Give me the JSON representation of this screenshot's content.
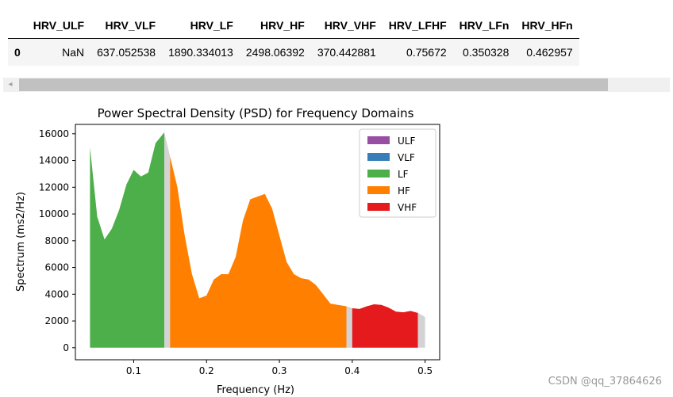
{
  "dataframe": {
    "columns": [
      "",
      "HRV_ULF",
      "HRV_VLF",
      "HRV_LF",
      "HRV_HF",
      "HRV_VHF",
      "HRV_LFHF",
      "HRV_LFn",
      "HRV_HFn"
    ],
    "rows": [
      [
        "0",
        "NaN",
        "637.052538",
        "1890.334013",
        "2498.06392",
        "370.442881",
        "0.75672",
        "0.350328",
        "0.462957"
      ]
    ]
  },
  "scrollbar": {
    "left_arrow": "◂"
  },
  "chart_data": {
    "type": "area",
    "title": "Power Spectral Density (PSD) for Frequency Domains",
    "xlabel": "Frequency (Hz)",
    "ylabel": "Spectrum (ms2/Hz)",
    "xlim": [
      0.02,
      0.52
    ],
    "ylim": [
      -900,
      16700
    ],
    "xticks": [
      0.1,
      0.2,
      0.3,
      0.4,
      0.5
    ],
    "xtick_labels": [
      "0.1",
      "0.2",
      "0.3",
      "0.4",
      "0.5"
    ],
    "yticks": [
      0,
      2000,
      4000,
      6000,
      8000,
      10000,
      12000,
      14000,
      16000
    ],
    "ytick_labels": [
      "0",
      "2000",
      "4000",
      "6000",
      "8000",
      "10000",
      "12000",
      "14000",
      "16000"
    ],
    "grid": false,
    "legend_position": "top-right",
    "legend": [
      {
        "name": "ULF",
        "color": "#984ea3"
      },
      {
        "name": "VLF",
        "color": "#377eb8"
      },
      {
        "name": "LF",
        "color": "#4daf4a"
      },
      {
        "name": "HF",
        "color": "#ff7f00"
      },
      {
        "name": "VHF",
        "color": "#e41a1c"
      }
    ],
    "gap_color": "#d3d3d3",
    "series": [
      {
        "name": "LF",
        "color": "#4daf4a",
        "x": [
          0.04,
          0.05,
          0.06,
          0.07,
          0.08,
          0.09,
          0.1,
          0.11,
          0.12,
          0.13,
          0.142
        ],
        "y": [
          15000,
          9800,
          8100,
          8900,
          10300,
          12200,
          13300,
          12800,
          13100,
          15300,
          16100
        ]
      },
      {
        "name": "gap-1",
        "color": "#d3d3d3",
        "x": [
          0.142,
          0.15
        ],
        "y": [
          16100,
          14300
        ]
      },
      {
        "name": "HF",
        "color": "#ff7f00",
        "x": [
          0.15,
          0.16,
          0.17,
          0.18,
          0.19,
          0.2,
          0.21,
          0.22,
          0.23,
          0.24,
          0.25,
          0.26,
          0.27,
          0.28,
          0.29,
          0.3,
          0.31,
          0.32,
          0.33,
          0.34,
          0.35,
          0.36,
          0.37,
          0.38,
          0.392
        ],
        "y": [
          14300,
          12000,
          8400,
          5500,
          3700,
          3900,
          5100,
          5500,
          5500,
          6800,
          9500,
          11100,
          11300,
          11500,
          10400,
          8400,
          6400,
          5500,
          5200,
          5100,
          4700,
          4000,
          3300,
          3200,
          3100
        ]
      },
      {
        "name": "gap-2",
        "color": "#d3d3d3",
        "x": [
          0.392,
          0.4
        ],
        "y": [
          3100,
          2950
        ]
      },
      {
        "name": "VHF",
        "color": "#e41a1c",
        "x": [
          0.4,
          0.41,
          0.42,
          0.43,
          0.44,
          0.45,
          0.46,
          0.47,
          0.48,
          0.49
        ],
        "y": [
          2950,
          2900,
          3100,
          3250,
          3200,
          3000,
          2700,
          2650,
          2750,
          2600
        ]
      },
      {
        "name": "gap-3",
        "color": "#d3d3d3",
        "x": [
          0.49,
          0.5
        ],
        "y": [
          2600,
          2300
        ]
      }
    ]
  },
  "watermark": "CSDN @qq_37864626"
}
